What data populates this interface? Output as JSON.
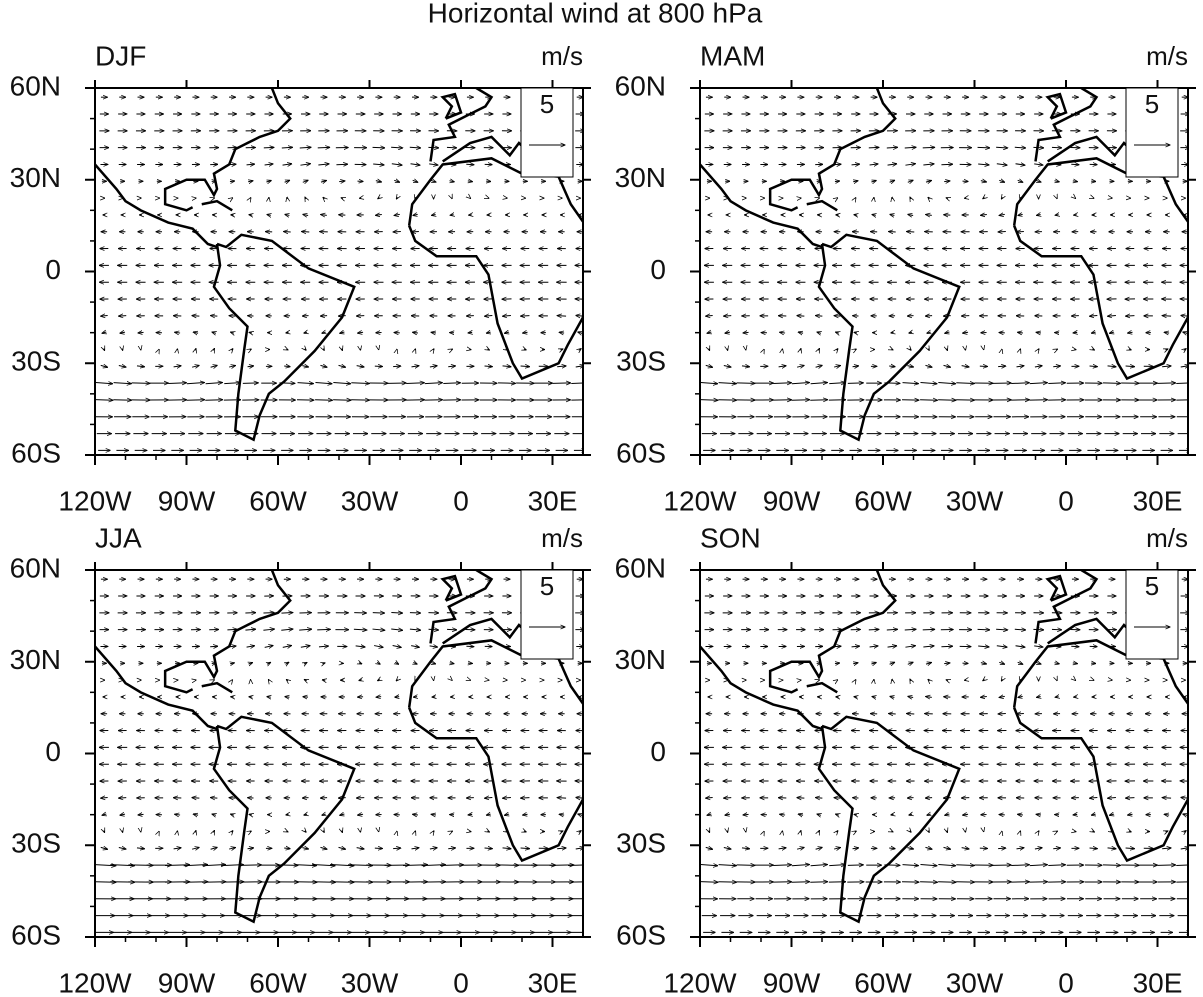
{
  "title": "Horizontal wind at 800 hPa",
  "panels": [
    {
      "label": "DJF",
      "unit": "m/s",
      "reference": "5"
    },
    {
      "label": "MAM",
      "unit": "m/s",
      "reference": "5"
    },
    {
      "label": "JJA",
      "unit": "m/s",
      "reference": "5"
    },
    {
      "label": "SON",
      "unit": "m/s",
      "reference": "5"
    }
  ],
  "x_axis": {
    "labels": [
      "120W",
      "90W",
      "60W",
      "30W",
      "0",
      "30E"
    ]
  },
  "y_axis": {
    "labels": [
      "60N",
      "30N",
      "0",
      "30S",
      "60S"
    ]
  }
}
